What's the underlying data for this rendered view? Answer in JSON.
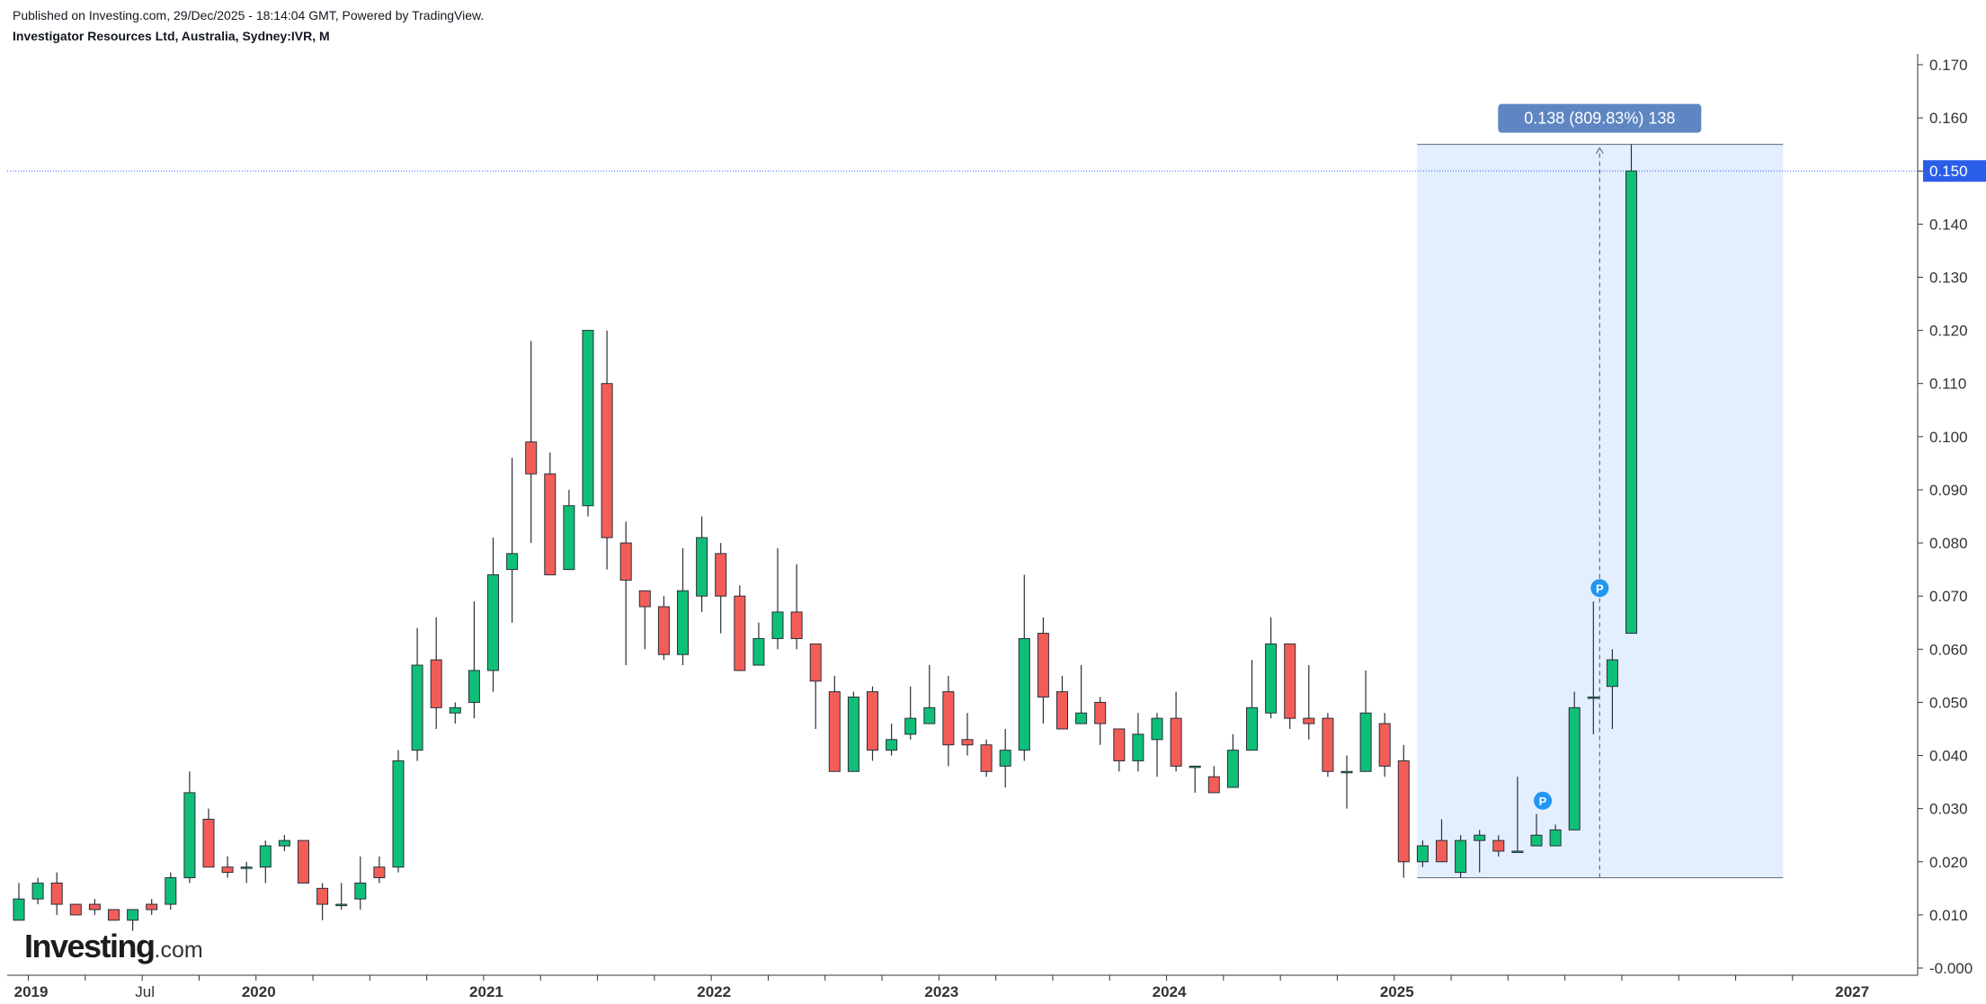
{
  "header": {
    "published": "Published on Investing.com, 29/Dec/2025 - 18:14:04 GMT, Powered by TradingView.",
    "symbol_line": "Investigator Resources Ltd, Australia, Sydney:IVR, M"
  },
  "logo": {
    "brand": "Investing",
    "suffix": ".com"
  },
  "colors": {
    "up": "#0fbf78",
    "down": "#f25e57",
    "price_line": "#2962ff",
    "price_label_bg": "#2b5ee8",
    "measure_bg": "#e3efff",
    "measure_label_bg": "#5f86c2",
    "marker": "#2196f3"
  },
  "chart_data": {
    "type": "candlestick",
    "interval": "monthly",
    "yticks": [
      "0.170",
      "0.160",
      "0.150",
      "0.140",
      "0.130",
      "0.120",
      "0.110",
      "0.100",
      "0.090",
      "0.080",
      "0.070",
      "0.060",
      "0.050",
      "0.040",
      "0.030",
      "0.020",
      "0.010",
      "-0.000"
    ],
    "ylim": [
      -0.0,
      0.17
    ],
    "xticks": [
      {
        "label": "2019",
        "x": "2019-01",
        "bold": true
      },
      {
        "label": "Jul",
        "x": "2019-07",
        "bold": false
      },
      {
        "label": "2020",
        "x": "2020-01",
        "bold": true
      },
      {
        "label": "2021",
        "x": "2021-01",
        "bold": true
      },
      {
        "label": "2022",
        "x": "2022-01",
        "bold": true
      },
      {
        "label": "2023",
        "x": "2023-01",
        "bold": true
      },
      {
        "label": "2024",
        "x": "2024-01",
        "bold": true
      },
      {
        "label": "2025",
        "x": "2025-01",
        "bold": true
      },
      {
        "label": "2027",
        "x": "2027-01",
        "bold": true
      }
    ],
    "x_range": [
      "2018-12",
      "2027-01"
    ],
    "current_price": "0.150",
    "grid": false,
    "candles": [
      {
        "x": "2018-12",
        "o": 0.009,
        "h": 0.016,
        "l": 0.009,
        "c": 0.013
      },
      {
        "x": "2019-01",
        "o": 0.013,
        "h": 0.017,
        "l": 0.012,
        "c": 0.016
      },
      {
        "x": "2019-02",
        "o": 0.016,
        "h": 0.018,
        "l": 0.01,
        "c": 0.012
      },
      {
        "x": "2019-03",
        "o": 0.012,
        "h": 0.012,
        "l": 0.01,
        "c": 0.01
      },
      {
        "x": "2019-04",
        "o": 0.012,
        "h": 0.013,
        "l": 0.01,
        "c": 0.011
      },
      {
        "x": "2019-05",
        "o": 0.011,
        "h": 0.011,
        "l": 0.009,
        "c": 0.009
      },
      {
        "x": "2019-06",
        "o": 0.009,
        "h": 0.011,
        "l": 0.007,
        "c": 0.011
      },
      {
        "x": "2019-07",
        "o": 0.012,
        "h": 0.013,
        "l": 0.01,
        "c": 0.011
      },
      {
        "x": "2019-08",
        "o": 0.012,
        "h": 0.018,
        "l": 0.011,
        "c": 0.017
      },
      {
        "x": "2019-09",
        "o": 0.017,
        "h": 0.037,
        "l": 0.016,
        "c": 0.033
      },
      {
        "x": "2019-10",
        "o": 0.028,
        "h": 0.03,
        "l": 0.019,
        "c": 0.019
      },
      {
        "x": "2019-11",
        "o": 0.019,
        "h": 0.021,
        "l": 0.017,
        "c": 0.018
      },
      {
        "x": "2019-12",
        "o": 0.019,
        "h": 0.02,
        "l": 0.016,
        "c": 0.019
      },
      {
        "x": "2020-01",
        "o": 0.019,
        "h": 0.024,
        "l": 0.016,
        "c": 0.023
      },
      {
        "x": "2020-02",
        "o": 0.023,
        "h": 0.025,
        "l": 0.022,
        "c": 0.024
      },
      {
        "x": "2020-03",
        "o": 0.024,
        "h": 0.024,
        "l": 0.016,
        "c": 0.016
      },
      {
        "x": "2020-04",
        "o": 0.015,
        "h": 0.016,
        "l": 0.009,
        "c": 0.012
      },
      {
        "x": "2020-05",
        "o": 0.012,
        "h": 0.016,
        "l": 0.011,
        "c": 0.012
      },
      {
        "x": "2020-06",
        "o": 0.013,
        "h": 0.021,
        "l": 0.011,
        "c": 0.016
      },
      {
        "x": "2020-07",
        "o": 0.019,
        "h": 0.021,
        "l": 0.016,
        "c": 0.017
      },
      {
        "x": "2020-08",
        "o": 0.019,
        "h": 0.041,
        "l": 0.018,
        "c": 0.039
      },
      {
        "x": "2020-09",
        "o": 0.041,
        "h": 0.064,
        "l": 0.039,
        "c": 0.057
      },
      {
        "x": "2020-10",
        "o": 0.058,
        "h": 0.066,
        "l": 0.045,
        "c": 0.049
      },
      {
        "x": "2020-11",
        "o": 0.048,
        "h": 0.05,
        "l": 0.046,
        "c": 0.049
      },
      {
        "x": "2020-12",
        "o": 0.05,
        "h": 0.069,
        "l": 0.047,
        "c": 0.056
      },
      {
        "x": "2021-01",
        "o": 0.056,
        "h": 0.081,
        "l": 0.052,
        "c": 0.074
      },
      {
        "x": "2021-02",
        "o": 0.075,
        "h": 0.096,
        "l": 0.065,
        "c": 0.078
      },
      {
        "x": "2021-03",
        "o": 0.099,
        "h": 0.118,
        "l": 0.08,
        "c": 0.093
      },
      {
        "x": "2021-04",
        "o": 0.093,
        "h": 0.097,
        "l": 0.074,
        "c": 0.074
      },
      {
        "x": "2021-05",
        "o": 0.075,
        "h": 0.09,
        "l": 0.075,
        "c": 0.087
      },
      {
        "x": "2021-06",
        "o": 0.087,
        "h": 0.12,
        "l": 0.085,
        "c": 0.12
      },
      {
        "x": "2021-07",
        "o": 0.11,
        "h": 0.12,
        "l": 0.075,
        "c": 0.081
      },
      {
        "x": "2021-08",
        "o": 0.08,
        "h": 0.084,
        "l": 0.057,
        "c": 0.073
      },
      {
        "x": "2021-09",
        "o": 0.071,
        "h": 0.071,
        "l": 0.06,
        "c": 0.068
      },
      {
        "x": "2021-10",
        "o": 0.068,
        "h": 0.07,
        "l": 0.058,
        "c": 0.059
      },
      {
        "x": "2021-11",
        "o": 0.059,
        "h": 0.079,
        "l": 0.057,
        "c": 0.071
      },
      {
        "x": "2021-12",
        "o": 0.07,
        "h": 0.085,
        "l": 0.067,
        "c": 0.081
      },
      {
        "x": "2022-01",
        "o": 0.078,
        "h": 0.08,
        "l": 0.063,
        "c": 0.07
      },
      {
        "x": "2022-02",
        "o": 0.07,
        "h": 0.072,
        "l": 0.056,
        "c": 0.056
      },
      {
        "x": "2022-03",
        "o": 0.057,
        "h": 0.065,
        "l": 0.057,
        "c": 0.062
      },
      {
        "x": "2022-04",
        "o": 0.062,
        "h": 0.079,
        "l": 0.06,
        "c": 0.067
      },
      {
        "x": "2022-05",
        "o": 0.067,
        "h": 0.076,
        "l": 0.06,
        "c": 0.062
      },
      {
        "x": "2022-06",
        "o": 0.061,
        "h": 0.061,
        "l": 0.045,
        "c": 0.054
      },
      {
        "x": "2022-07",
        "o": 0.052,
        "h": 0.055,
        "l": 0.037,
        "c": 0.037
      },
      {
        "x": "2022-08",
        "o": 0.037,
        "h": 0.052,
        "l": 0.037,
        "c": 0.051
      },
      {
        "x": "2022-09",
        "o": 0.052,
        "h": 0.053,
        "l": 0.039,
        "c": 0.041
      },
      {
        "x": "2022-10",
        "o": 0.041,
        "h": 0.046,
        "l": 0.04,
        "c": 0.043
      },
      {
        "x": "2022-11",
        "o": 0.044,
        "h": 0.053,
        "l": 0.043,
        "c": 0.047
      },
      {
        "x": "2022-12",
        "o": 0.046,
        "h": 0.057,
        "l": 0.046,
        "c": 0.049
      },
      {
        "x": "2023-01",
        "o": 0.052,
        "h": 0.055,
        "l": 0.038,
        "c": 0.042
      },
      {
        "x": "2023-02",
        "o": 0.043,
        "h": 0.048,
        "l": 0.04,
        "c": 0.042
      },
      {
        "x": "2023-03",
        "o": 0.042,
        "h": 0.043,
        "l": 0.036,
        "c": 0.037
      },
      {
        "x": "2023-04",
        "o": 0.038,
        "h": 0.045,
        "l": 0.034,
        "c": 0.041
      },
      {
        "x": "2023-05",
        "o": 0.041,
        "h": 0.074,
        "l": 0.039,
        "c": 0.062
      },
      {
        "x": "2023-06",
        "o": 0.063,
        "h": 0.066,
        "l": 0.046,
        "c": 0.051
      },
      {
        "x": "2023-07",
        "o": 0.052,
        "h": 0.055,
        "l": 0.045,
        "c": 0.045
      },
      {
        "x": "2023-08",
        "o": 0.046,
        "h": 0.057,
        "l": 0.046,
        "c": 0.048
      },
      {
        "x": "2023-09",
        "o": 0.05,
        "h": 0.051,
        "l": 0.042,
        "c": 0.046
      },
      {
        "x": "2023-10",
        "o": 0.045,
        "h": 0.045,
        "l": 0.037,
        "c": 0.039
      },
      {
        "x": "2023-11",
        "o": 0.039,
        "h": 0.048,
        "l": 0.037,
        "c": 0.044
      },
      {
        "x": "2023-12",
        "o": 0.043,
        "h": 0.048,
        "l": 0.036,
        "c": 0.047
      },
      {
        "x": "2024-01",
        "o": 0.047,
        "h": 0.052,
        "l": 0.037,
        "c": 0.038
      },
      {
        "x": "2024-02",
        "o": 0.038,
        "h": 0.038,
        "l": 0.033,
        "c": 0.038
      },
      {
        "x": "2024-03",
        "o": 0.036,
        "h": 0.038,
        "l": 0.033,
        "c": 0.033
      },
      {
        "x": "2024-04",
        "o": 0.034,
        "h": 0.044,
        "l": 0.034,
        "c": 0.041
      },
      {
        "x": "2024-05",
        "o": 0.041,
        "h": 0.058,
        "l": 0.041,
        "c": 0.049
      },
      {
        "x": "2024-06",
        "o": 0.048,
        "h": 0.066,
        "l": 0.047,
        "c": 0.061
      },
      {
        "x": "2024-07",
        "o": 0.061,
        "h": 0.061,
        "l": 0.045,
        "c": 0.047
      },
      {
        "x": "2024-08",
        "o": 0.047,
        "h": 0.057,
        "l": 0.043,
        "c": 0.046
      },
      {
        "x": "2024-09",
        "o": 0.047,
        "h": 0.048,
        "l": 0.036,
        "c": 0.037
      },
      {
        "x": "2024-10",
        "o": 0.037,
        "h": 0.04,
        "l": 0.03,
        "c": 0.037
      },
      {
        "x": "2024-11",
        "o": 0.037,
        "h": 0.056,
        "l": 0.037,
        "c": 0.048
      },
      {
        "x": "2024-12",
        "o": 0.046,
        "h": 0.048,
        "l": 0.036,
        "c": 0.038
      },
      {
        "x": "2025-01",
        "o": 0.039,
        "h": 0.042,
        "l": 0.017,
        "c": 0.02
      },
      {
        "x": "2025-02",
        "o": 0.02,
        "h": 0.024,
        "l": 0.019,
        "c": 0.023
      },
      {
        "x": "2025-03",
        "o": 0.024,
        "h": 0.028,
        "l": 0.02,
        "c": 0.02
      },
      {
        "x": "2025-04",
        "o": 0.018,
        "h": 0.025,
        "l": 0.017,
        "c": 0.024
      },
      {
        "x": "2025-05",
        "o": 0.024,
        "h": 0.026,
        "l": 0.018,
        "c": 0.025
      },
      {
        "x": "2025-06",
        "o": 0.024,
        "h": 0.025,
        "l": 0.021,
        "c": 0.022
      },
      {
        "x": "2025-07",
        "o": 0.022,
        "h": 0.036,
        "l": 0.022,
        "c": 0.022
      },
      {
        "x": "2025-08",
        "o": 0.023,
        "h": 0.029,
        "l": 0.023,
        "c": 0.025
      },
      {
        "x": "2025-09",
        "o": 0.023,
        "h": 0.027,
        "l": 0.023,
        "c": 0.026
      },
      {
        "x": "2025-10",
        "o": 0.026,
        "h": 0.052,
        "l": 0.026,
        "c": 0.049
      },
      {
        "x": "2025-11",
        "o": 0.051,
        "h": 0.069,
        "l": 0.044,
        "c": 0.051
      },
      {
        "x": "2025-12",
        "o": 0.053,
        "h": 0.06,
        "l": 0.045,
        "c": 0.058
      },
      {
        "x": "2026-01",
        "o": 0.063,
        "h": 0.155,
        "l": 0.063,
        "c": 0.15
      }
    ],
    "measure_tool": {
      "label": "0.138 (809.83%) 138",
      "x_start": "2025-01",
      "x_end": "2026-09",
      "x_center": "2025-11",
      "low": 0.017,
      "high": 0.155
    },
    "markers": [
      {
        "x": "2025-08",
        "y": 0.0315,
        "label": "P"
      },
      {
        "x": "2025-11",
        "y": 0.0715,
        "label": "P"
      }
    ]
  }
}
